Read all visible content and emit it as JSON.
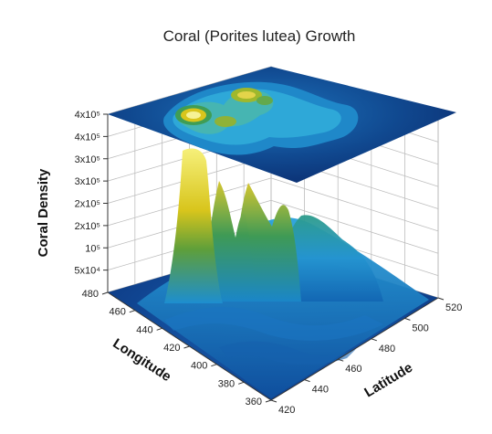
{
  "chart_data": {
    "type": "surface3d",
    "title": "Coral (Porites lutea) Growth",
    "xlabel": "Latitude",
    "ylabel": "Longitude",
    "zlabel": "Coral Density",
    "x_ticks": [
      "420",
      "440",
      "460",
      "480",
      "500",
      "520"
    ],
    "y_ticks": [
      "360",
      "380",
      "400",
      "420",
      "440",
      "460",
      "480"
    ],
    "z_ticks": [
      "5x10⁴",
      "10⁵",
      "2x10⁵",
      "2x10⁵",
      "3x10⁵",
      "3x10⁵",
      "4x10⁵"
    ],
    "z_values": [
      50000,
      100000,
      150000,
      200000,
      250000,
      300000,
      350000
    ],
    "x_range": [
      420,
      520
    ],
    "y_range": [
      360,
      480
    ],
    "z_range": [
      0,
      400000
    ],
    "contour_projection": "top",
    "grid": true,
    "colormap": [
      "#0b2a6e",
      "#0b55a8",
      "#1487cf",
      "#2fa6d6",
      "#2f9a6a",
      "#c9c21a",
      "#f3ef80"
    ],
    "peaks": [
      {
        "latitude": 426,
        "longitude": 448,
        "density": 370000
      },
      {
        "latitude": 440,
        "longitude": 440,
        "density": 250000
      },
      {
        "latitude": 452,
        "longitude": 446,
        "density": 230000
      },
      {
        "latitude": 460,
        "longitude": 442,
        "density": 155000
      },
      {
        "latitude": 482,
        "longitude": 425,
        "density": 65000
      }
    ]
  }
}
